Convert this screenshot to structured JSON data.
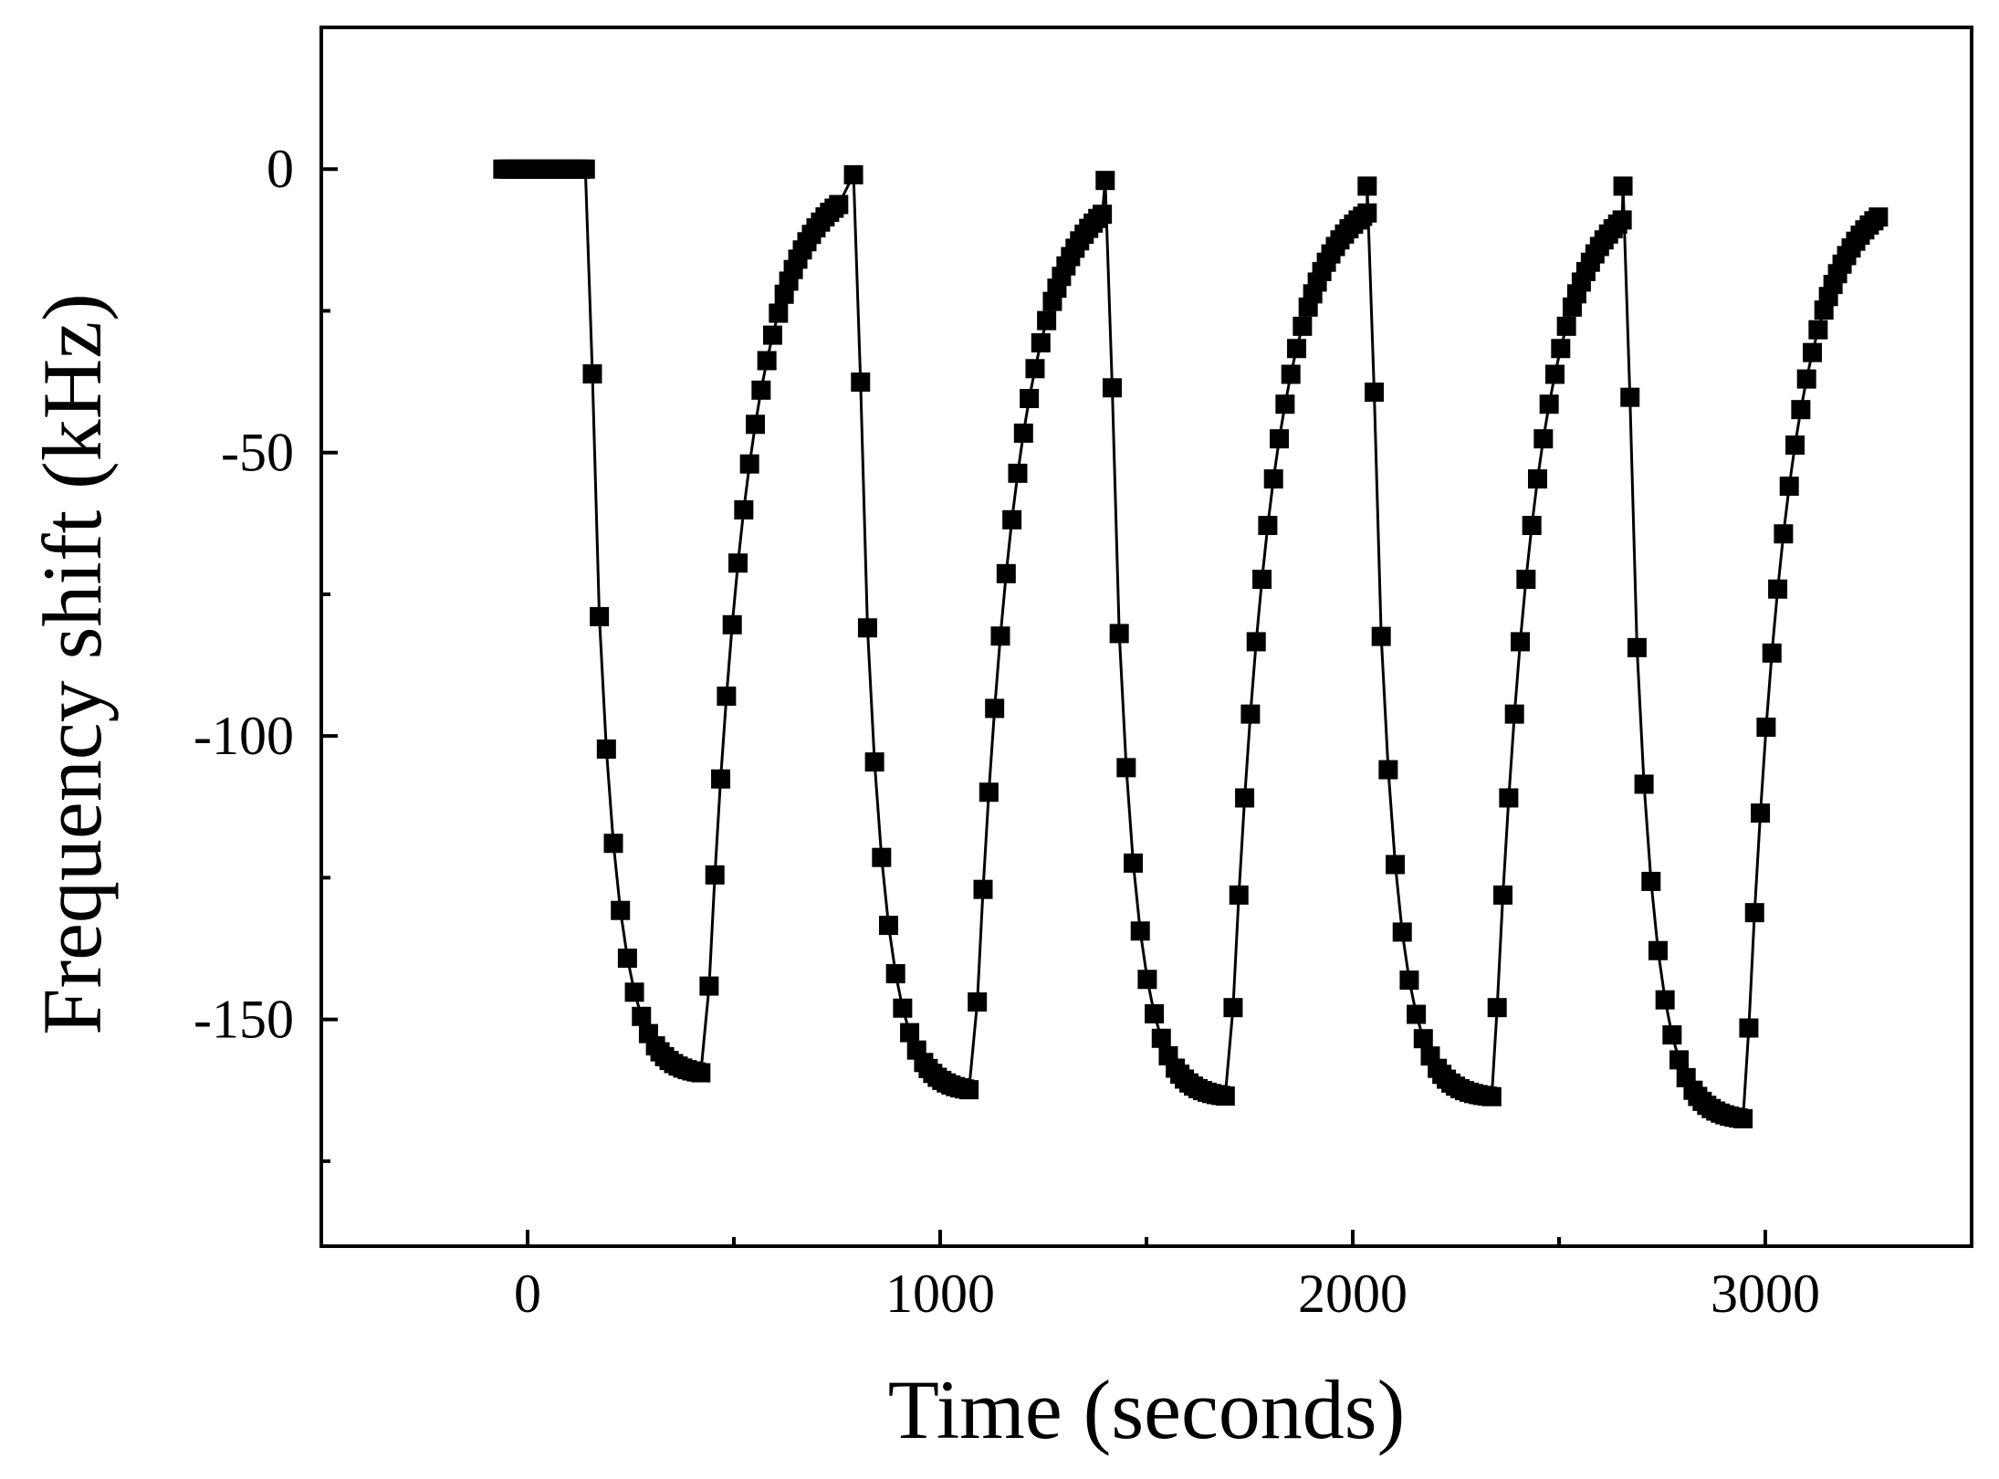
{
  "chart_data": {
    "type": "line",
    "title": "",
    "xlabel": "Time (seconds)",
    "ylabel": "Frequency shift (kHz)",
    "xlim": [
      -500,
      3500
    ],
    "ylim": [
      -190,
      25
    ],
    "x_ticks": [
      0,
      1000,
      2000,
      3000
    ],
    "x_tick_labels": [
      "0",
      "1000",
      "2000",
      "3000"
    ],
    "y_ticks": [
      0,
      -50,
      -100,
      -150
    ],
    "y_tick_labels": [
      "0",
      "-50",
      "-100",
      "-150"
    ],
    "grid": false,
    "legend": "none",
    "marker": "square",
    "color": "#000000",
    "series": [
      {
        "cycles": [
          {
            "t0": -60,
            "drop_start": 140,
            "min": -160,
            "rise_start": 430,
            "end": 760,
            "rise_end": -1
          },
          {
            "drop_start": 790,
            "min": -163,
            "rise_start": 1080,
            "end": 1400,
            "rise_end": -2
          },
          {
            "drop_start": 1400,
            "min": -164,
            "rise_start": 1700,
            "end": 2035,
            "rise_end": -3
          },
          {
            "drop_start": 2035,
            "min": -164,
            "rise_start": 2340,
            "end": 2655,
            "rise_end": -3
          },
          {
            "drop_start": 2655,
            "min": -168,
            "rise_start": 2950,
            "end": 3280,
            "rise_end": -3
          }
        ]
      }
    ]
  }
}
